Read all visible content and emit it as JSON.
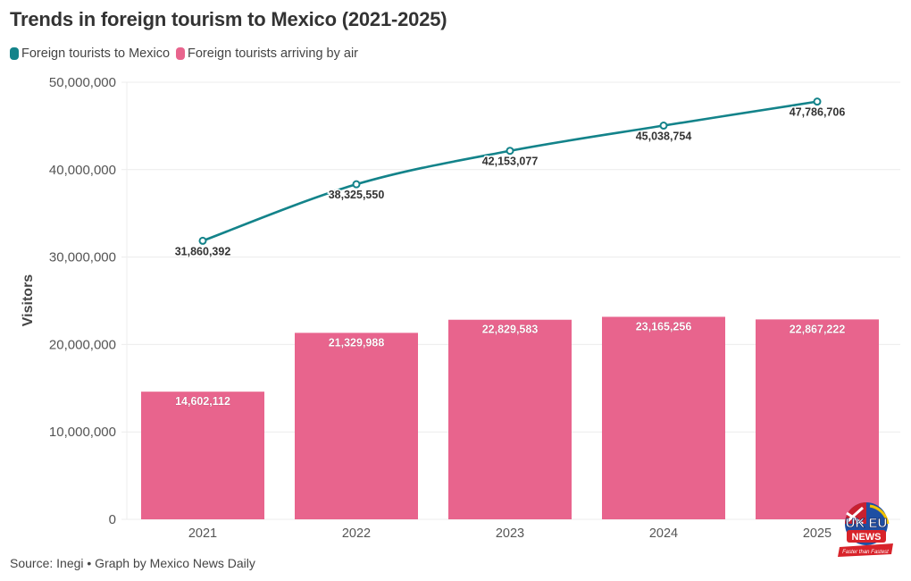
{
  "title": "Trends in foreign tourism to Mexico (2021-2025)",
  "source": "Source: Inegi • Graph by Mexico News Daily",
  "logo": {
    "top_text": "UK EU",
    "mid_text": "NEWS",
    "tagline": "Faster than Fastest"
  },
  "chart_data": {
    "type": "bar",
    "title": "Trends in foreign tourism to Mexico (2021-2025)",
    "xlabel": "",
    "ylabel": "Visitors",
    "ylim": [
      0,
      50000000
    ],
    "yticks": [
      0,
      10000000,
      20000000,
      30000000,
      40000000,
      50000000
    ],
    "ytick_labels": [
      "0",
      "10,000,000",
      "20,000,000",
      "30,000,000",
      "40,000,000",
      "50,000,000"
    ],
    "grid": true,
    "legend_position": "top-left",
    "categories": [
      "2021",
      "2022",
      "2023",
      "2024",
      "2025"
    ],
    "series": [
      {
        "name": "Foreign tourists to Mexico",
        "type": "line",
        "color": "#13838a",
        "values": [
          31860392,
          38325550,
          42153077,
          45038754,
          47786706
        ],
        "labels": [
          "31,860,392",
          "38,325,550",
          "42,153,077",
          "45,038,754",
          "47,786,706"
        ]
      },
      {
        "name": "Foreign tourists arriving by air",
        "type": "bar",
        "color": "#e8648d",
        "values": [
          14602112,
          21329988,
          22829583,
          23165256,
          22867222
        ],
        "labels": [
          "14,602,112",
          "21,329,988",
          "22,829,583",
          "23,165,256",
          "22,867,222"
        ]
      }
    ]
  }
}
